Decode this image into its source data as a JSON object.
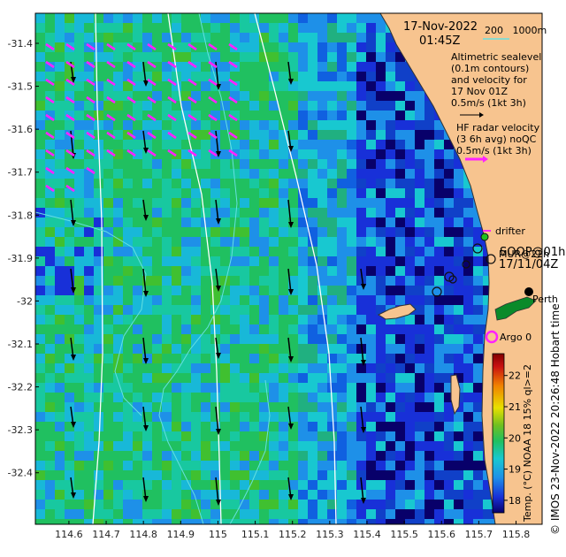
{
  "header": {
    "date": "17-Nov-2022",
    "time": "01:45Z",
    "scale_label": "200   1000m"
  },
  "legend": {
    "altimetric": [
      "Altimetric sealevel",
      "(0.1m contours)",
      "and velocity for",
      "17 Nov 01Z",
      "0.5m/s (1kt 3h)"
    ],
    "hf_radar": [
      "HF radar velocity",
      "(3 6h avg) noQC",
      "0.5m/s (1kt 3h)"
    ],
    "drifter": "drifter",
    "argo": "Argo 0",
    "perth": "Perth",
    "overlay_labels": [
      "SOOP@01h",
      "MUR@22h",
      "17/11/04Z"
    ]
  },
  "axes": {
    "lat_ticks": [
      "-31.4",
      "-31.5",
      "-31.6",
      "-31.7",
      "-31.8",
      "-31.9",
      "-32",
      "-32.1",
      "-32.2",
      "-32.3",
      "-32.4"
    ],
    "lon_ticks": [
      "114.6",
      "114.7",
      "114.8",
      "114.9",
      "115",
      "115.1",
      "115.2",
      "115.3",
      "115.4",
      "115.5",
      "115.6",
      "115.7",
      "115.8"
    ],
    "lat_range": [
      -32.52,
      -31.33
    ],
    "lon_range": [
      114.51,
      115.87
    ]
  },
  "colorbar": {
    "label": "Temp. (°C) NOAA 18 15% ql>=2",
    "ticks": [
      "18",
      "19",
      "20",
      "21",
      "22"
    ],
    "range": [
      17.6,
      22.7
    ]
  },
  "credit": "© IMOS 23-Nov-2022 20:26:48 Hobart time",
  "colors": {
    "land": "#f7c48f",
    "hf_arrow": "#ff22ff",
    "contour": "#66e0e0",
    "isobath": "#ffffff",
    "colorbar_stops": [
      "#08006a",
      "#1830d8",
      "#1e90e8",
      "#18c8d0",
      "#20c060",
      "#70c020",
      "#e8e000",
      "#f08000",
      "#c81010",
      "#800000"
    ]
  }
}
